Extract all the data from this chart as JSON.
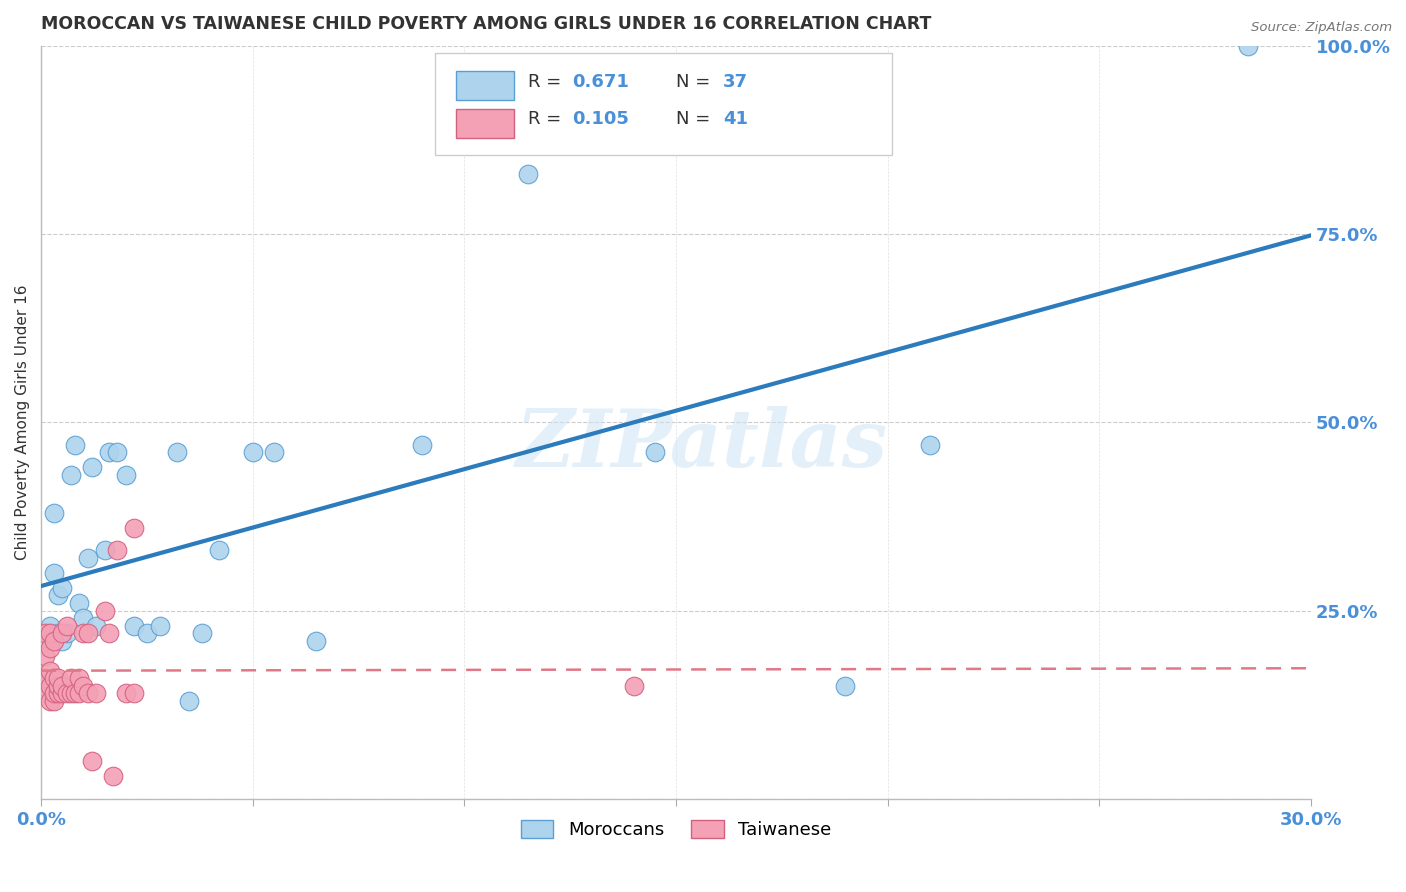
{
  "title": "MOROCCAN VS TAIWANESE CHILD POVERTY AMONG GIRLS UNDER 16 CORRELATION CHART",
  "source": "Source: ZipAtlas.com",
  "ylabel": "Child Poverty Among Girls Under 16",
  "xlim": [
    0,
    0.3
  ],
  "ylim": [
    0,
    1.0
  ],
  "xticks": [
    0.0,
    0.05,
    0.1,
    0.15,
    0.2,
    0.25,
    0.3
  ],
  "yticks": [
    0.0,
    0.25,
    0.5,
    0.75,
    1.0
  ],
  "ytick_labels": [
    "",
    "25.0%",
    "50.0%",
    "75.0%",
    "100.0%"
  ],
  "xtick_labels": [
    "0.0%",
    "",
    "",
    "",
    "",
    "",
    "30.0%"
  ],
  "moroccans_x": [
    0.001,
    0.002,
    0.002,
    0.003,
    0.003,
    0.004,
    0.004,
    0.005,
    0.005,
    0.006,
    0.007,
    0.008,
    0.009,
    0.01,
    0.011,
    0.012,
    0.013,
    0.015,
    0.016,
    0.018,
    0.02,
    0.022,
    0.025,
    0.028,
    0.032,
    0.035,
    0.038,
    0.042,
    0.05,
    0.055,
    0.065,
    0.09,
    0.115,
    0.145,
    0.19,
    0.21,
    0.285
  ],
  "moroccans_y": [
    0.21,
    0.22,
    0.23,
    0.3,
    0.38,
    0.22,
    0.27,
    0.21,
    0.28,
    0.22,
    0.43,
    0.47,
    0.26,
    0.24,
    0.32,
    0.44,
    0.23,
    0.33,
    0.46,
    0.46,
    0.43,
    0.23,
    0.22,
    0.23,
    0.46,
    0.13,
    0.22,
    0.33,
    0.46,
    0.46,
    0.21,
    0.47,
    0.83,
    0.46,
    0.15,
    0.47,
    1.0
  ],
  "taiwanese_x": [
    0.0005,
    0.001,
    0.001,
    0.001,
    0.001,
    0.002,
    0.002,
    0.002,
    0.002,
    0.002,
    0.003,
    0.003,
    0.003,
    0.003,
    0.004,
    0.004,
    0.004,
    0.005,
    0.005,
    0.005,
    0.006,
    0.006,
    0.007,
    0.007,
    0.008,
    0.009,
    0.009,
    0.01,
    0.01,
    0.011,
    0.011,
    0.012,
    0.013,
    0.015,
    0.016,
    0.017,
    0.018,
    0.02,
    0.022,
    0.022,
    0.14
  ],
  "taiwanese_y": [
    0.15,
    0.14,
    0.16,
    0.19,
    0.22,
    0.13,
    0.15,
    0.17,
    0.2,
    0.22,
    0.13,
    0.14,
    0.16,
    0.21,
    0.14,
    0.15,
    0.16,
    0.14,
    0.15,
    0.22,
    0.14,
    0.23,
    0.14,
    0.16,
    0.14,
    0.14,
    0.16,
    0.15,
    0.22,
    0.14,
    0.22,
    0.05,
    0.14,
    0.25,
    0.22,
    0.03,
    0.33,
    0.14,
    0.36,
    0.14,
    0.15
  ],
  "moroccan_color": "#aed4ed",
  "taiwanese_color": "#f4a0b5",
  "moroccan_edge_color": "#5a9fd4",
  "taiwanese_edge_color": "#d46080",
  "moroccan_line_color": "#2b7bbd",
  "taiwanese_line_color": "#e07888",
  "axis_color": "#4a90d9",
  "title_color": "#333333",
  "grid_color": "#cccccc",
  "watermark": "ZIPatlas",
  "background_color": "#ffffff",
  "legend_label_moroccan": "Moroccans",
  "legend_label_taiwanese": "Taiwanese",
  "R_moroccan": "0.671",
  "N_moroccan": "37",
  "R_taiwanese": "0.105",
  "N_taiwanese": "41"
}
